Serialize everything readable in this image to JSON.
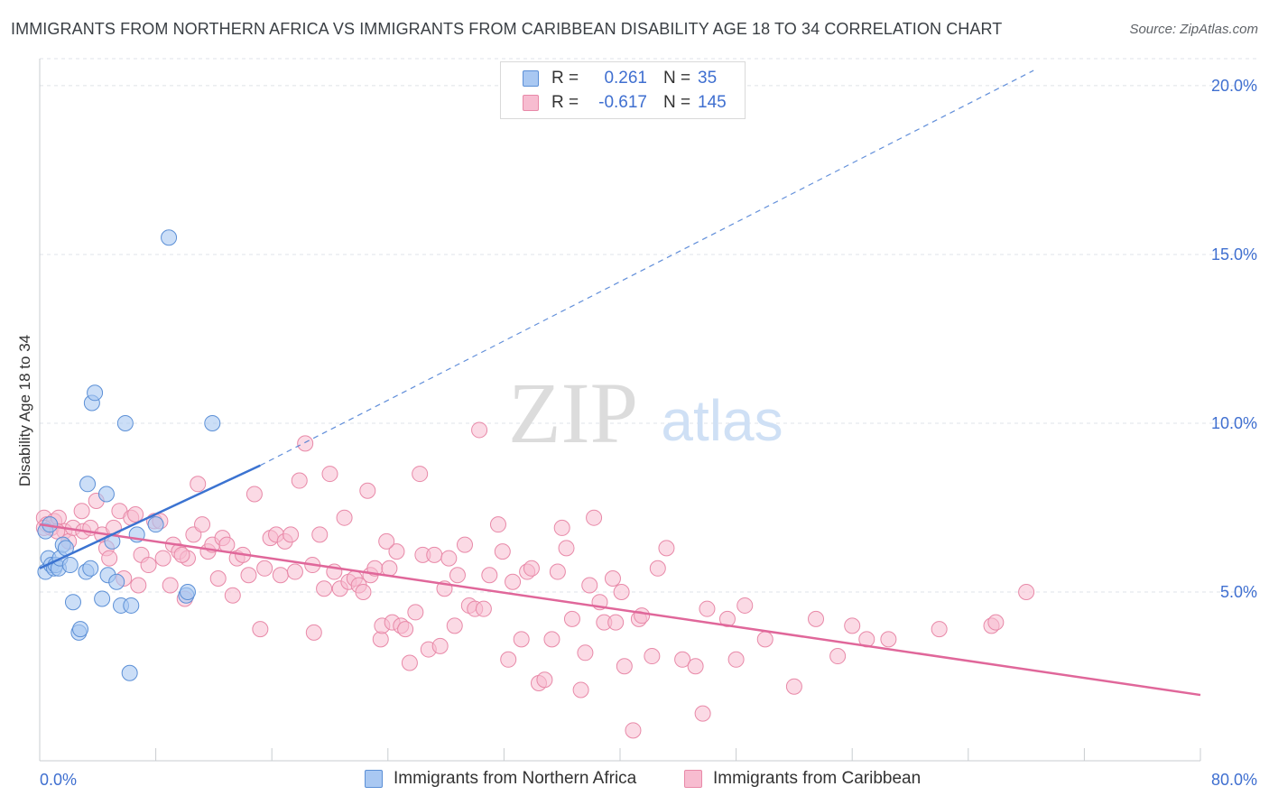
{
  "header": {
    "title": "IMMIGRANTS FROM NORTHERN AFRICA VS IMMIGRANTS FROM CARIBBEAN DISABILITY AGE 18 TO 34 CORRELATION CHART",
    "source": "Source: ZipAtlas.com"
  },
  "watermark": {
    "zip": "ZIP",
    "atlas": "atlas"
  },
  "legend": {
    "rows": [
      {
        "r_label": "R =",
        "r_value": "0.261",
        "n_label": "N =",
        "n_value": "35"
      },
      {
        "r_label": "R =",
        "r_value": "-0.617",
        "n_label": "N =",
        "n_value": "145"
      }
    ]
  },
  "bottom_legend": {
    "items": [
      "Immigrants from Northern Africa",
      "Immigrants from Caribbean"
    ]
  },
  "colors": {
    "blue_fill": "#a9c8f2",
    "blue_stroke": "#5b8fd6",
    "blue_line": "#3b73d1",
    "pink_fill": "#f7bcd0",
    "pink_stroke": "#e889a8",
    "pink_line": "#e0679a",
    "axis_text": "#3f6fd0",
    "grid": "#dfe3e8"
  },
  "chart_data": {
    "type": "scatter",
    "title": "IMMIGRANTS FROM NORTHERN AFRICA VS IMMIGRANTS FROM CARIBBEAN DISABILITY AGE 18 TO 34 CORRELATION CHART",
    "xlabel": "",
    "ylabel": "Disability Age 18 to 34",
    "xlim": [
      0,
      80
    ],
    "ylim": [
      0,
      20.8
    ],
    "x_tick_labels": [
      "0.0%",
      "80.0%"
    ],
    "y_ticks": [
      5,
      10,
      15,
      20
    ],
    "y_tick_labels": [
      "5.0%",
      "10.0%",
      "15.0%",
      "20.0%"
    ],
    "grid": true,
    "legend_placement": "top-center",
    "series": [
      {
        "name": "Immigrants from Northern Africa",
        "r": 0.261,
        "n": 35,
        "trend": {
          "x0": 0,
          "y0": 5.7,
          "x1": 15.2,
          "y1": 8.75,
          "dash_to_x": 68.5,
          "dash_to_y": 20.45
        },
        "points": [
          [
            0.4,
            6.8
          ],
          [
            0.4,
            5.6
          ],
          [
            0.6,
            6.0
          ],
          [
            0.7,
            7.0
          ],
          [
            0.8,
            5.8
          ],
          [
            1.0,
            5.7
          ],
          [
            1.1,
            5.8
          ],
          [
            1.3,
            5.7
          ],
          [
            1.4,
            6.0
          ],
          [
            1.6,
            6.4
          ],
          [
            1.8,
            6.3
          ],
          [
            2.1,
            5.8
          ],
          [
            2.3,
            4.7
          ],
          [
            2.7,
            3.8
          ],
          [
            2.8,
            3.9
          ],
          [
            3.2,
            5.6
          ],
          [
            3.3,
            8.2
          ],
          [
            3.5,
            5.7
          ],
          [
            3.6,
            10.6
          ],
          [
            3.8,
            10.9
          ],
          [
            4.3,
            4.8
          ],
          [
            4.6,
            7.9
          ],
          [
            4.7,
            5.5
          ],
          [
            5.0,
            6.5
          ],
          [
            5.3,
            5.3
          ],
          [
            5.6,
            4.6
          ],
          [
            5.9,
            10.0
          ],
          [
            6.2,
            2.6
          ],
          [
            6.3,
            4.6
          ],
          [
            6.7,
            6.7
          ],
          [
            8.0,
            7.0
          ],
          [
            8.9,
            15.5
          ],
          [
            10.1,
            4.9
          ],
          [
            10.2,
            5.0
          ],
          [
            11.9,
            10.0
          ]
        ]
      },
      {
        "name": "Immigrants from Caribbean",
        "r": -0.617,
        "n": 145,
        "trend": {
          "x0": 0,
          "y0": 7.0,
          "x1": 80,
          "y1": 1.95
        },
        "points": [
          [
            0.3,
            7.2
          ],
          [
            0.5,
            7.0
          ],
          [
            0.8,
            6.9
          ],
          [
            1.0,
            7.1
          ],
          [
            1.3,
            7.2
          ],
          [
            1.7,
            6.8
          ],
          [
            2.0,
            6.5
          ],
          [
            2.3,
            6.9
          ],
          [
            2.9,
            7.4
          ],
          [
            3.0,
            6.8
          ],
          [
            3.5,
            6.9
          ],
          [
            3.9,
            7.7
          ],
          [
            4.3,
            6.7
          ],
          [
            4.6,
            6.3
          ],
          [
            4.8,
            6.0
          ],
          [
            5.1,
            6.9
          ],
          [
            5.5,
            7.4
          ],
          [
            5.8,
            5.4
          ],
          [
            6.3,
            7.2
          ],
          [
            6.6,
            7.3
          ],
          [
            6.8,
            5.2
          ],
          [
            7.0,
            6.1
          ],
          [
            7.5,
            5.8
          ],
          [
            7.9,
            7.1
          ],
          [
            8.3,
            7.1
          ],
          [
            8.5,
            6.0
          ],
          [
            9.0,
            5.2
          ],
          [
            9.2,
            6.4
          ],
          [
            9.6,
            6.2
          ],
          [
            10.0,
            4.8
          ],
          [
            10.2,
            6.0
          ],
          [
            10.6,
            6.7
          ],
          [
            10.9,
            8.2
          ],
          [
            11.2,
            7.0
          ],
          [
            11.6,
            6.2
          ],
          [
            11.9,
            6.4
          ],
          [
            12.3,
            5.4
          ],
          [
            12.6,
            6.6
          ],
          [
            12.9,
            6.4
          ],
          [
            13.3,
            4.9
          ],
          [
            13.6,
            6.0
          ],
          [
            14.0,
            6.1
          ],
          [
            14.4,
            5.5
          ],
          [
            14.8,
            7.9
          ],
          [
            15.2,
            3.9
          ],
          [
            15.5,
            5.7
          ],
          [
            15.9,
            6.6
          ],
          [
            16.3,
            6.7
          ],
          [
            16.6,
            5.5
          ],
          [
            16.9,
            6.5
          ],
          [
            17.3,
            6.7
          ],
          [
            17.6,
            5.6
          ],
          [
            17.9,
            8.3
          ],
          [
            18.3,
            9.4
          ],
          [
            18.8,
            5.8
          ],
          [
            18.9,
            3.8
          ],
          [
            19.3,
            6.7
          ],
          [
            19.6,
            5.1
          ],
          [
            20.0,
            8.5
          ],
          [
            20.3,
            5.6
          ],
          [
            20.7,
            5.1
          ],
          [
            21.0,
            7.2
          ],
          [
            21.3,
            5.3
          ],
          [
            21.7,
            5.4
          ],
          [
            22.0,
            5.2
          ],
          [
            22.3,
            5.0
          ],
          [
            22.6,
            8.0
          ],
          [
            22.8,
            5.5
          ],
          [
            23.1,
            5.7
          ],
          [
            23.5,
            3.6
          ],
          [
            23.6,
            4.0
          ],
          [
            24.1,
            5.7
          ],
          [
            24.3,
            4.1
          ],
          [
            24.6,
            6.2
          ],
          [
            24.9,
            4.0
          ],
          [
            25.2,
            3.9
          ],
          [
            25.5,
            2.9
          ],
          [
            25.9,
            4.4
          ],
          [
            26.2,
            8.5
          ],
          [
            26.4,
            6.1
          ],
          [
            26.8,
            3.3
          ],
          [
            27.2,
            6.1
          ],
          [
            27.6,
            3.4
          ],
          [
            27.9,
            5.1
          ],
          [
            28.2,
            6.0
          ],
          [
            28.6,
            4.0
          ],
          [
            28.8,
            5.5
          ],
          [
            29.3,
            6.4
          ],
          [
            29.6,
            4.6
          ],
          [
            30.0,
            4.5
          ],
          [
            30.3,
            9.8
          ],
          [
            30.6,
            4.5
          ],
          [
            31.0,
            5.5
          ],
          [
            31.6,
            7.0
          ],
          [
            31.9,
            6.2
          ],
          [
            32.3,
            3.0
          ],
          [
            32.6,
            5.3
          ],
          [
            33.2,
            3.6
          ],
          [
            33.6,
            5.6
          ],
          [
            33.9,
            5.7
          ],
          [
            34.4,
            2.3
          ],
          [
            34.8,
            2.4
          ],
          [
            35.3,
            3.6
          ],
          [
            35.7,
            5.6
          ],
          [
            36.0,
            6.9
          ],
          [
            36.3,
            6.3
          ],
          [
            36.7,
            4.2
          ],
          [
            37.3,
            2.1
          ],
          [
            37.6,
            3.2
          ],
          [
            37.9,
            5.2
          ],
          [
            38.2,
            7.2
          ],
          [
            38.6,
            4.7
          ],
          [
            38.9,
            4.1
          ],
          [
            39.5,
            5.4
          ],
          [
            39.7,
            4.1
          ],
          [
            40.1,
            5.0
          ],
          [
            40.3,
            2.8
          ],
          [
            40.9,
            0.9
          ],
          [
            41.3,
            4.2
          ],
          [
            41.5,
            4.3
          ],
          [
            42.2,
            3.1
          ],
          [
            42.6,
            5.7
          ],
          [
            43.2,
            6.3
          ],
          [
            44.3,
            3.0
          ],
          [
            45.2,
            2.8
          ],
          [
            45.7,
            1.4
          ],
          [
            46.0,
            4.5
          ],
          [
            47.4,
            4.2
          ],
          [
            48.0,
            3.0
          ],
          [
            48.6,
            4.6
          ],
          [
            50.0,
            3.6
          ],
          [
            52.0,
            2.2
          ],
          [
            53.5,
            4.2
          ],
          [
            55.0,
            3.1
          ],
          [
            56.0,
            4.0
          ],
          [
            57.0,
            3.6
          ],
          [
            58.5,
            3.6
          ],
          [
            62.0,
            3.9
          ],
          [
            65.6,
            4.0
          ],
          [
            65.9,
            4.1
          ],
          [
            68.0,
            5.0
          ],
          [
            0.3,
            6.9
          ],
          [
            1.2,
            6.8
          ],
          [
            9.8,
            6.1
          ],
          [
            23.9,
            6.5
          ]
        ]
      }
    ]
  }
}
